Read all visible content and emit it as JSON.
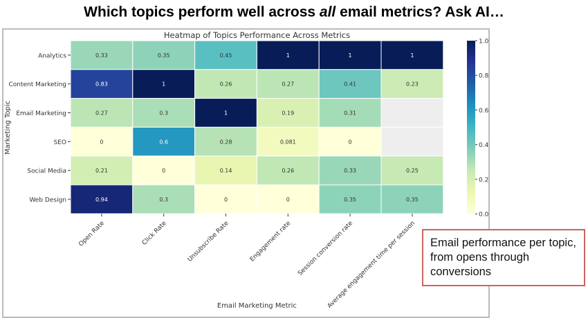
{
  "slide": {
    "title_parts": [
      "Which topics perform well across ",
      "all",
      " email metrics? Ask AI…"
    ]
  },
  "callout": {
    "line1": "Email performance per topic,",
    "line2": "from opens through conversions"
  },
  "chart_data": {
    "type": "heatmap",
    "title": "Heatmap of Topics Performance Across Metrics",
    "xlabel": "Email Marketing Metric",
    "ylabel": "Marketing Topic",
    "x_categories": [
      "Open Rate",
      "Click Rate",
      "Unsubscribe Rate",
      "Engagement rate",
      "Session conversion rate",
      "Average engagement time per session"
    ],
    "y_categories": [
      "Analytics",
      "Content Marketing",
      "Email Marketing",
      "SEO",
      "Social Media",
      "Web Design"
    ],
    "values": [
      [
        0.33,
        0.35,
        0.45,
        1,
        1,
        1
      ],
      [
        0.83,
        1,
        0.26,
        0.27,
        0.41,
        0.23
      ],
      [
        0.27,
        0.3,
        1,
        0.19,
        0.31,
        null
      ],
      [
        0,
        0.6,
        0.28,
        0.081,
        0,
        null
      ],
      [
        0.21,
        0,
        0.14,
        0.26,
        0.33,
        0.25
      ],
      [
        0.94,
        0.3,
        0,
        0,
        0.35,
        0.35
      ]
    ],
    "colormap": "YlGnBu",
    "colorbar": {
      "range": [
        0,
        1
      ],
      "ticks": [
        "0.0",
        "0.2",
        "0.4",
        "0.6",
        "0.8",
        "1.0"
      ]
    }
  }
}
